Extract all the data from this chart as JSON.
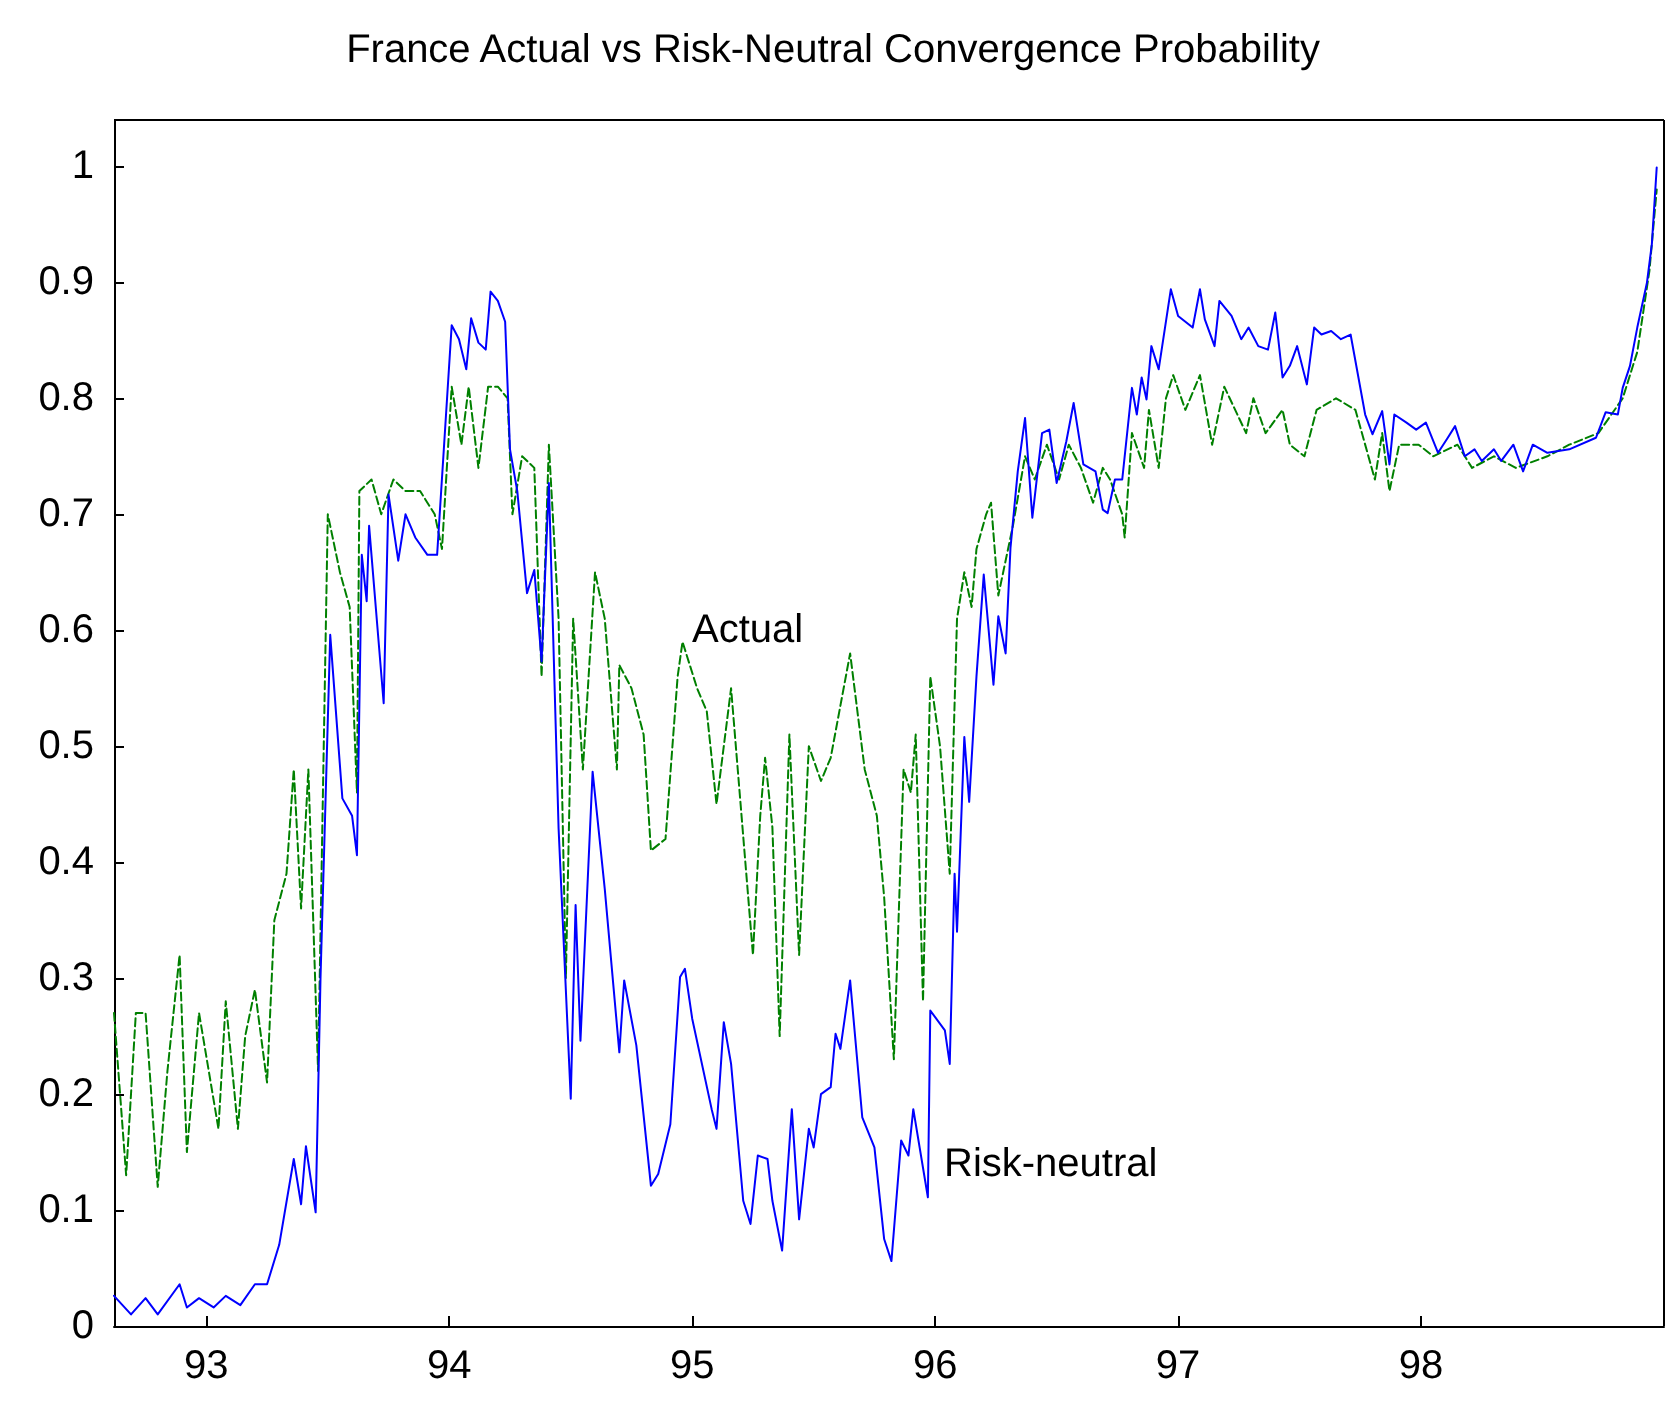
{
  "chart_data": {
    "type": "line",
    "title": "France Actual vs Risk-Neutral Convergence Probability",
    "xlim": [
      92.62,
      99
    ],
    "xticks": [
      93,
      94,
      95,
      96,
      97,
      98
    ],
    "ylim": [
      0,
      1.04
    ],
    "yticks": [
      0,
      0.1,
      0.2,
      0.3,
      0.4,
      0.5,
      0.6,
      0.7,
      0.8,
      0.9,
      1
    ],
    "grid": false,
    "marker": "none",
    "annotations": [
      "Actual",
      "Risk-neutral"
    ],
    "series": [
      {
        "color": "#008000",
        "line_style": "dashed",
        "x": [
          92.62,
          92.67,
          92.71,
          92.75,
          92.8,
          92.84,
          92.89,
          92.92,
          92.97,
          93.05,
          93.08,
          93.13,
          93.16,
          93.2,
          93.25,
          93.28,
          93.33,
          93.36,
          93.39,
          93.42,
          93.46,
          93.5,
          93.55,
          93.59,
          93.62,
          93.63,
          93.68,
          93.72,
          93.77,
          93.82,
          93.88,
          93.94,
          93.97,
          94.01,
          94.05,
          94.08,
          94.12,
          94.16,
          94.2,
          94.24,
          94.26,
          94.3,
          94.35,
          94.38,
          94.41,
          94.45,
          94.48,
          94.51,
          94.55,
          94.6,
          94.64,
          94.69,
          94.7,
          94.75,
          94.8,
          94.83,
          94.89,
          94.94,
          94.96,
          95.02,
          95.06,
          95.1,
          95.16,
          95.25,
          95.28,
          95.3,
          95.33,
          95.36,
          95.4,
          95.44,
          95.48,
          95.53,
          95.57,
          95.65,
          95.71,
          95.76,
          95.79,
          95.83,
          95.87,
          95.9,
          95.92,
          95.95,
          95.98,
          96.02,
          96.06,
          96.09,
          96.12,
          96.15,
          96.17,
          96.21,
          96.23,
          96.26,
          96.32,
          96.37,
          96.41,
          96.46,
          96.51,
          96.55,
          96.6,
          96.65,
          96.69,
          96.72,
          96.77,
          96.78,
          96.81,
          96.86,
          96.88,
          96.92,
          96.95,
          96.98,
          97.03,
          97.09,
          97.14,
          97.19,
          97.28,
          97.31,
          97.36,
          97.43,
          97.46,
          97.52,
          97.57,
          97.65,
          97.73,
          97.81,
          97.84,
          97.87,
          97.91,
          97.99,
          98.05,
          98.15,
          98.21,
          98.3,
          98.39,
          98.52,
          98.61,
          98.73,
          98.83,
          98.89,
          98.94,
          98.97
        ],
        "values": [
          0.27,
          0.13,
          0.27,
          0.27,
          0.12,
          0.22,
          0.32,
          0.15,
          0.27,
          0.17,
          0.28,
          0.17,
          0.25,
          0.29,
          0.21,
          0.35,
          0.39,
          0.48,
          0.36,
          0.48,
          0.22,
          0.7,
          0.65,
          0.62,
          0.46,
          0.72,
          0.73,
          0.7,
          0.73,
          0.72,
          0.72,
          0.7,
          0.67,
          0.81,
          0.76,
          0.81,
          0.74,
          0.81,
          0.81,
          0.8,
          0.7,
          0.75,
          0.74,
          0.56,
          0.76,
          0.61,
          0.3,
          0.61,
          0.48,
          0.65,
          0.61,
          0.48,
          0.57,
          0.55,
          0.51,
          0.41,
          0.42,
          0.56,
          0.59,
          0.55,
          0.53,
          0.45,
          0.55,
          0.32,
          0.44,
          0.49,
          0.43,
          0.25,
          0.51,
          0.32,
          0.5,
          0.47,
          0.49,
          0.58,
          0.48,
          0.44,
          0.37,
          0.23,
          0.48,
          0.46,
          0.51,
          0.28,
          0.56,
          0.5,
          0.39,
          0.61,
          0.65,
          0.62,
          0.67,
          0.7,
          0.71,
          0.63,
          0.69,
          0.75,
          0.73,
          0.76,
          0.73,
          0.76,
          0.74,
          0.71,
          0.74,
          0.73,
          0.7,
          0.68,
          0.77,
          0.74,
          0.79,
          0.74,
          0.8,
          0.82,
          0.79,
          0.82,
          0.76,
          0.81,
          0.77,
          0.8,
          0.77,
          0.79,
          0.76,
          0.75,
          0.79,
          0.8,
          0.79,
          0.73,
          0.77,
          0.72,
          0.76,
          0.76,
          0.75,
          0.76,
          0.74,
          0.75,
          0.74,
          0.75,
          0.76,
          0.77,
          0.8,
          0.84,
          0.91,
          0.98
        ]
      },
      {
        "color": "#0000ff",
        "line_style": "solid",
        "x": [
          92.62,
          92.69,
          92.75,
          92.8,
          92.89,
          92.92,
          92.97,
          93.03,
          93.08,
          93.14,
          93.2,
          93.25,
          93.3,
          93.36,
          93.39,
          93.41,
          93.45,
          93.47,
          93.51,
          93.56,
          93.6,
          93.62,
          93.64,
          93.66,
          93.67,
          93.73,
          93.75,
          93.79,
          93.82,
          93.86,
          93.91,
          93.95,
          94.01,
          94.04,
          94.07,
          94.09,
          94.12,
          94.15,
          94.17,
          94.2,
          94.23,
          94.25,
          94.28,
          94.32,
          94.35,
          94.38,
          94.41,
          94.45,
          94.5,
          94.52,
          94.54,
          94.59,
          94.64,
          94.7,
          94.72,
          94.77,
          94.83,
          94.86,
          94.91,
          94.95,
          94.97,
          95.0,
          95.08,
          95.1,
          95.13,
          95.16,
          95.21,
          95.24,
          95.27,
          95.31,
          95.33,
          95.37,
          95.41,
          95.44,
          95.48,
          95.5,
          95.53,
          95.57,
          95.59,
          95.61,
          95.65,
          95.7,
          95.75,
          95.79,
          95.82,
          95.86,
          95.89,
          95.91,
          95.97,
          95.98,
          96.04,
          96.06,
          96.08,
          96.09,
          96.12,
          96.14,
          96.17,
          96.2,
          96.24,
          96.26,
          96.29,
          96.31,
          96.34,
          96.37,
          96.4,
          96.44,
          96.47,
          96.5,
          96.54,
          96.57,
          96.61,
          96.66,
          96.69,
          96.71,
          96.74,
          96.77,
          96.81,
          96.83,
          96.85,
          96.87,
          96.89,
          96.92,
          96.97,
          97.0,
          97.06,
          97.09,
          97.11,
          97.15,
          97.17,
          97.22,
          97.26,
          97.29,
          97.33,
          97.37,
          97.4,
          97.43,
          97.46,
          97.49,
          97.53,
          97.56,
          97.59,
          97.63,
          97.67,
          97.71,
          97.77,
          97.8,
          97.84,
          97.87,
          97.89,
          97.94,
          97.98,
          98.02,
          98.07,
          98.11,
          98.14,
          98.18,
          98.22,
          98.25,
          98.3,
          98.33,
          98.38,
          98.42,
          98.46,
          98.52,
          98.61,
          98.72,
          98.76,
          98.81,
          98.83,
          98.86,
          98.89,
          98.93,
          98.95,
          98.97
        ],
        "values": [
          0.026,
          0.01,
          0.024,
          0.01,
          0.036,
          0.016,
          0.024,
          0.016,
          0.026,
          0.018,
          0.036,
          0.036,
          0.07,
          0.144,
          0.105,
          0.155,
          0.098,
          0.3,
          0.596,
          0.455,
          0.44,
          0.406,
          0.665,
          0.625,
          0.69,
          0.537,
          0.717,
          0.66,
          0.7,
          0.68,
          0.665,
          0.665,
          0.863,
          0.851,
          0.825,
          0.869,
          0.848,
          0.842,
          0.892,
          0.884,
          0.866,
          0.756,
          0.72,
          0.632,
          0.652,
          0.573,
          0.727,
          0.429,
          0.196,
          0.363,
          0.246,
          0.478,
          0.377,
          0.236,
          0.298,
          0.242,
          0.121,
          0.131,
          0.174,
          0.301,
          0.308,
          0.265,
          0.187,
          0.17,
          0.262,
          0.226,
          0.108,
          0.088,
          0.147,
          0.144,
          0.108,
          0.065,
          0.187,
          0.092,
          0.17,
          0.154,
          0.2,
          0.206,
          0.252,
          0.239,
          0.298,
          0.18,
          0.154,
          0.075,
          0.056,
          0.16,
          0.147,
          0.187,
          0.111,
          0.272,
          0.255,
          0.226,
          0.39,
          0.34,
          0.508,
          0.452,
          0.56,
          0.648,
          0.553,
          0.612,
          0.58,
          0.671,
          0.737,
          0.783,
          0.697,
          0.77,
          0.773,
          0.727,
          0.763,
          0.796,
          0.743,
          0.737,
          0.704,
          0.701,
          0.73,
          0.73,
          0.809,
          0.786,
          0.818,
          0.799,
          0.845,
          0.825,
          0.894,
          0.871,
          0.861,
          0.894,
          0.868,
          0.845,
          0.884,
          0.871,
          0.851,
          0.861,
          0.845,
          0.842,
          0.874,
          0.818,
          0.828,
          0.845,
          0.812,
          0.861,
          0.855,
          0.858,
          0.851,
          0.855,
          0.786,
          0.769,
          0.789,
          0.743,
          0.786,
          0.779,
          0.773,
          0.779,
          0.753,
          0.766,
          0.776,
          0.75,
          0.756,
          0.746,
          0.756,
          0.746,
          0.76,
          0.737,
          0.76,
          0.753,
          0.756,
          0.766,
          0.788,
          0.786,
          0.809,
          0.828,
          0.861,
          0.9,
          0.933,
          0.999
        ]
      }
    ]
  }
}
